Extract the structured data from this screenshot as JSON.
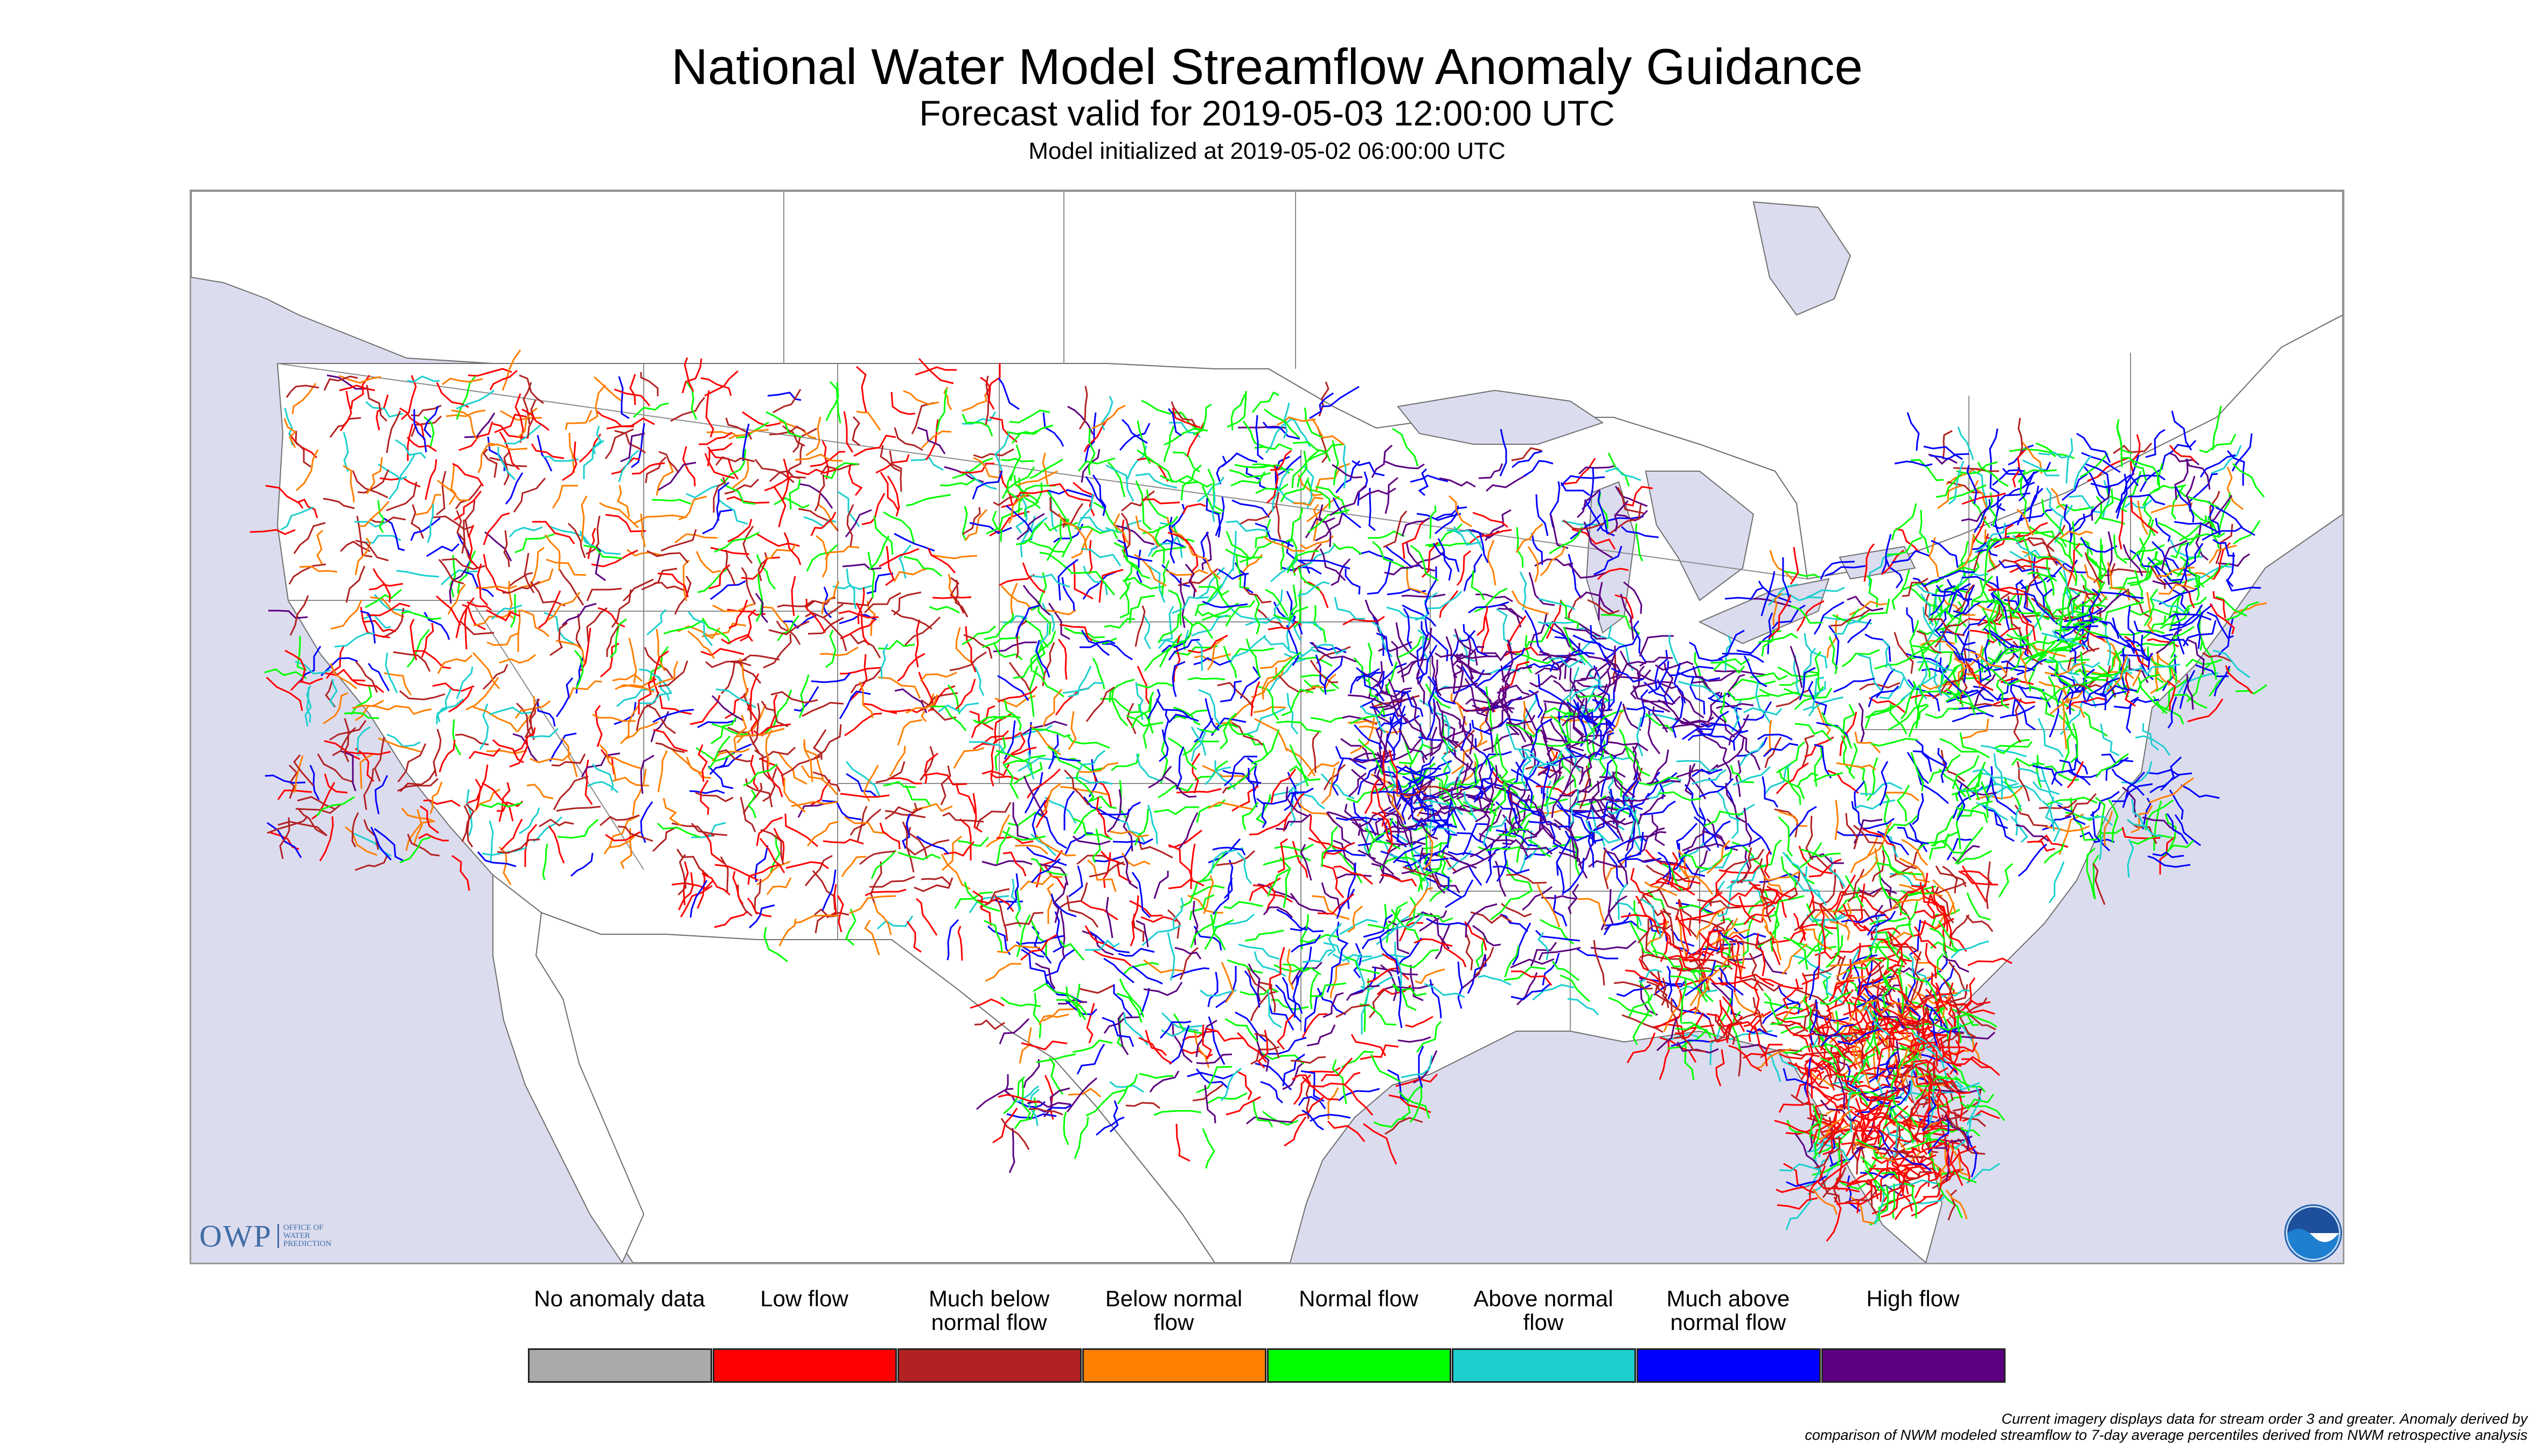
{
  "header": {
    "title": "National Water Model Streamflow Anomaly Guidance",
    "forecast": "Forecast valid for 2019-05-03 12:00:00 UTC",
    "initialized": "Model initialized at 2019-05-02 06:00:00 UTC"
  },
  "map": {
    "colors": {
      "ocean": "#dcdcef",
      "land": "#ffffff",
      "lakes": "#dcdcef",
      "borders": "#8c8c8c"
    }
  },
  "logo": {
    "owp_mark": "OWP",
    "owp_text": "Office of\nWater\nPrediction"
  },
  "legend": [
    {
      "label": "No anomaly data",
      "color": "#aaaaaa"
    },
    {
      "label": "Low flow",
      "color": "#ff0000"
    },
    {
      "label": "Much below normal flow",
      "color": "#b22222"
    },
    {
      "label": "Below normal flow",
      "color": "#ff7f00"
    },
    {
      "label": "Normal flow",
      "color": "#00ff00"
    },
    {
      "label": "Above normal flow",
      "color": "#1ccfcf"
    },
    {
      "label": "Much above normal flow",
      "color": "#0000ff"
    },
    {
      "label": "High flow",
      "color": "#5c0080"
    }
  ],
  "footnote": {
    "line1": "Current imagery displays data for stream order 3 and greater. Anomaly derived by",
    "line2": "comparison of NWM modeled streamflow to 7-day average percentiles derived from NWM retrospective analysis"
  }
}
